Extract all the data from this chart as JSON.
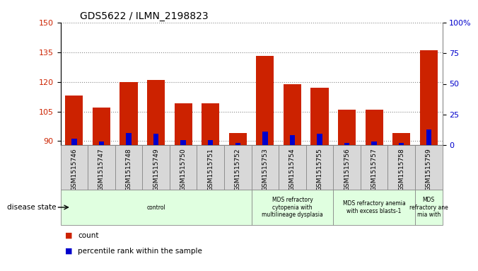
{
  "title": "GDS5622 / ILMN_2198823",
  "samples": [
    "GSM1515746",
    "GSM1515747",
    "GSM1515748",
    "GSM1515749",
    "GSM1515750",
    "GSM1515751",
    "GSM1515752",
    "GSM1515753",
    "GSM1515754",
    "GSM1515755",
    "GSM1515756",
    "GSM1515757",
    "GSM1515758",
    "GSM1515759"
  ],
  "counts": [
    113,
    107,
    120,
    121,
    109,
    109,
    94,
    133,
    119,
    117,
    106,
    106,
    94,
    136
  ],
  "percentiles": [
    5,
    3,
    10,
    9,
    4,
    4,
    2,
    11,
    8,
    9,
    2,
    3,
    2,
    13
  ],
  "y_min": 88,
  "y_max": 150,
  "y_ticks_left": [
    90,
    105,
    120,
    135,
    150
  ],
  "y_ticks_right": [
    0,
    25,
    50,
    75,
    100
  ],
  "bar_color": "#cc2200",
  "blue_color": "#0000cc",
  "grid_color": "#888888",
  "bg_plot": "#ffffff",
  "tick_label_color_left": "#cc2200",
  "tick_label_color_right": "#0000cc",
  "sample_box_color": "#d8d8d8",
  "sample_box_edge": "#888888",
  "disease_groups": [
    {
      "label": "control",
      "start": 0,
      "end": 7,
      "color": "#e0ffe0"
    },
    {
      "label": "MDS refractory\ncytopenia with\nmultilineage dysplasia",
      "start": 7,
      "end": 10,
      "color": "#e0ffe0"
    },
    {
      "label": "MDS refractory anemia\nwith excess blasts-1",
      "start": 10,
      "end": 13,
      "color": "#e0ffe0"
    },
    {
      "label": "MDS\nrefractory ane\nmia with",
      "start": 13,
      "end": 14,
      "color": "#e0ffe0"
    }
  ],
  "legend_count_label": "count",
  "legend_pct_label": "percentile rank within the sample",
  "disease_state_label": "disease state"
}
